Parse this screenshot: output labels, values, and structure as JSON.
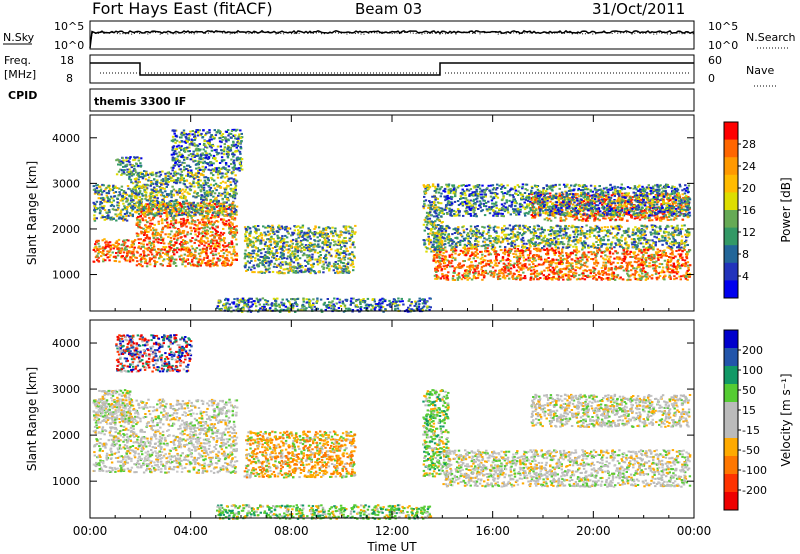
{
  "header": {
    "title": "Fort Hays East (fitACF)",
    "beam": "Beam 03",
    "date": "31/Oct/2011"
  },
  "top_panels": {
    "nsky_label": "N.Sky",
    "nsky_ticks": [
      "10^5",
      "10^0"
    ],
    "nsearch_label": "N.Search",
    "nsearch_ticks": [
      "10^5",
      "10^0"
    ],
    "freq_label": "Freq.",
    "freq_unit": "[MHz]",
    "freq_ticks": [
      "18",
      "8"
    ],
    "nave_label": "Nave",
    "nave_ticks": [
      "60",
      "0"
    ],
    "cpid_label": "CPID",
    "cpid_value": "themis 3300 IF"
  },
  "chart_data": [
    {
      "type": "heatmap",
      "panel": "power",
      "ylabel": "Slant Range [km]",
      "xlabel": "Time UT",
      "ylim": [
        200,
        4500
      ],
      "xlim": [
        0,
        24
      ],
      "x_ticks": [
        "00:00",
        "04:00",
        "08:00",
        "12:00",
        "16:00",
        "20:00",
        "00:00"
      ],
      "y_ticks": [
        "1000",
        "2000",
        "3000",
        "4000"
      ],
      "colorbar": {
        "label": "Power [dB]",
        "ticks": [
          "28",
          "24",
          "20",
          "16",
          "12",
          "8",
          "4"
        ],
        "colors": [
          "#ff0000",
          "#ff6600",
          "#ff9900",
          "#ffbb00",
          "#dddd00",
          "#66aa55",
          "#339966",
          "#226699",
          "#2233bb",
          "#0000ee"
        ]
      },
      "echo_bands": [
        {
          "t0": 0.1,
          "t1": 1.8,
          "r0": 1300,
          "r1": 1800,
          "level": "high"
        },
        {
          "t0": 1.8,
          "t1": 5.8,
          "r0": 1200,
          "r1": 2600,
          "level": "high"
        },
        {
          "t0": 0.1,
          "t1": 1.5,
          "r0": 2200,
          "r1": 3000,
          "level": "mid"
        },
        {
          "t0": 1.5,
          "t1": 5.8,
          "r0": 2300,
          "r1": 3300,
          "level": "mid"
        },
        {
          "t0": 1.0,
          "t1": 2.0,
          "r0": 3200,
          "r1": 3600,
          "level": "low"
        },
        {
          "t0": 3.2,
          "t1": 6.0,
          "r0": 3300,
          "r1": 4200,
          "level": "low"
        },
        {
          "t0": 6.1,
          "t1": 10.5,
          "r0": 1050,
          "r1": 2100,
          "level": "mid"
        },
        {
          "t0": 13.6,
          "t1": 23.8,
          "r0": 900,
          "r1": 1600,
          "level": "high"
        },
        {
          "t0": 13.6,
          "t1": 23.8,
          "r0": 1600,
          "r1": 2100,
          "level": "mid"
        },
        {
          "t0": 17.5,
          "t1": 23.8,
          "r0": 2200,
          "r1": 2800,
          "level": "high"
        },
        {
          "t0": 14.0,
          "t1": 23.8,
          "r0": 2300,
          "r1": 3000,
          "level": "low"
        },
        {
          "t0": 13.2,
          "t1": 14.0,
          "r0": 1500,
          "r1": 3000,
          "level": "mid"
        },
        {
          "t0": 5.0,
          "t1": 13.5,
          "r0": 200,
          "r1": 500,
          "level": "low"
        }
      ]
    },
    {
      "type": "heatmap",
      "panel": "velocity",
      "ylabel": "Slant Range [km]",
      "xlabel": "Time UT",
      "ylim": [
        200,
        4500
      ],
      "xlim": [
        0,
        24
      ],
      "x_ticks": [
        "00:00",
        "04:00",
        "08:00",
        "12:00",
        "16:00",
        "20:00",
        "00:00"
      ],
      "y_ticks": [
        "1000",
        "2000",
        "3000",
        "4000"
      ],
      "colorbar": {
        "label": "Velocity [m s⁻¹]",
        "ticks": [
          "200",
          "100",
          "50",
          "15",
          "-15",
          "-50",
          "-100",
          "-200"
        ],
        "colors": [
          "#0000cc",
          "#2255aa",
          "#119966",
          "#55cc33",
          "#bbbbbb",
          "#bbbbbb",
          "#ffaa00",
          "#ff7700",
          "#ff3300",
          "#ee0000"
        ]
      },
      "echo_bands": [
        {
          "t0": 0.1,
          "t1": 5.8,
          "r0": 1200,
          "r1": 2800,
          "level": "grey"
        },
        {
          "t0": 0.1,
          "t1": 1.6,
          "r0": 2300,
          "r1": 3000,
          "level": "grey"
        },
        {
          "t0": 1.0,
          "t1": 4.0,
          "r0": 3400,
          "r1": 4200,
          "level": "blue"
        },
        {
          "t0": 6.1,
          "t1": 10.5,
          "r0": 1100,
          "r1": 2100,
          "level": "orange"
        },
        {
          "t0": 13.2,
          "t1": 14.2,
          "r0": 1100,
          "r1": 3000,
          "level": "green"
        },
        {
          "t0": 14.0,
          "t1": 23.8,
          "r0": 900,
          "r1": 1700,
          "level": "grey"
        },
        {
          "t0": 17.5,
          "t1": 23.8,
          "r0": 2200,
          "r1": 2900,
          "level": "grey"
        },
        {
          "t0": 5.0,
          "t1": 13.5,
          "r0": 200,
          "r1": 500,
          "level": "green"
        }
      ]
    }
  ]
}
